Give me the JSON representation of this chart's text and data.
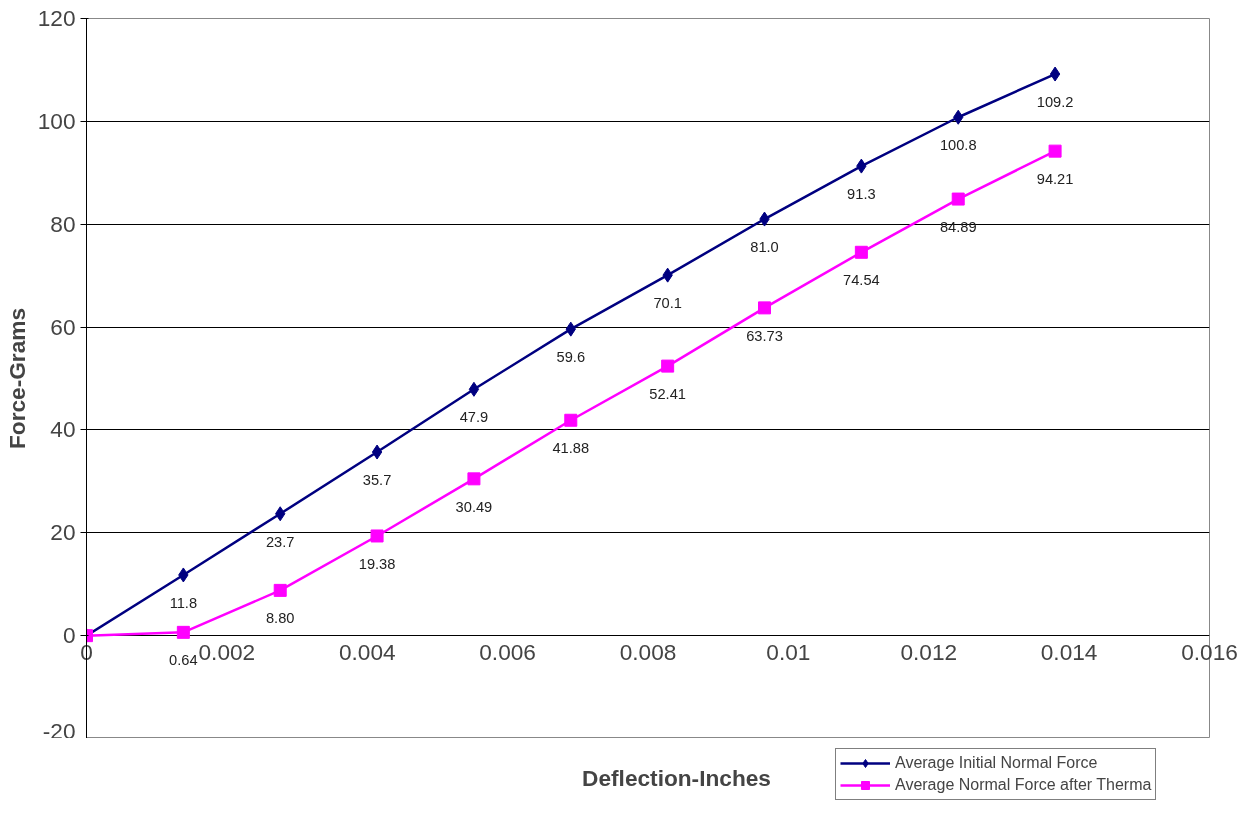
{
  "chart_data": {
    "type": "line",
    "xlabel": "Deflection-Inches",
    "ylabel": "Force-Grams",
    "x": [
      0,
      0.00138,
      0.00276,
      0.00414,
      0.00552,
      0.0069,
      0.00828,
      0.00966,
      0.01104,
      0.01242,
      0.0138
    ],
    "series": [
      {
        "name": "Average Initial Normal Force",
        "color": "#000080",
        "marker": "diamond",
        "values": [
          0,
          11.8,
          23.7,
          35.7,
          47.9,
          59.6,
          70.1,
          81.0,
          91.3,
          100.8,
          109.2
        ],
        "value_labels": [
          null,
          "11.8",
          "23.7",
          "35.7",
          "47.9",
          "59.6",
          "70.1",
          "81.0",
          "91.3",
          "100.8",
          "109.2"
        ]
      },
      {
        "name": "Average Normal Force after Therma",
        "color": "#ff00ff",
        "marker": "square",
        "values": [
          0,
          0.64,
          8.8,
          19.38,
          30.49,
          41.88,
          52.41,
          63.73,
          74.54,
          84.89,
          94.21
        ],
        "value_labels": [
          null,
          "0.64",
          "8.80",
          "19.38",
          "30.49",
          "41.88",
          "52.41",
          "63.73",
          "74.54",
          "84.89",
          "94.21"
        ]
      }
    ],
    "xlim": [
      0,
      0.016
    ],
    "xticks": [
      0,
      0.002,
      0.004,
      0.006,
      0.008,
      0.01,
      0.012,
      0.014,
      0.016
    ],
    "ylim": [
      -20,
      120
    ],
    "yticks": [
      -20,
      0,
      20,
      40,
      60,
      80,
      100,
      120
    ],
    "grid": "y",
    "legend": "bottom right",
    "line_style": "solid"
  }
}
